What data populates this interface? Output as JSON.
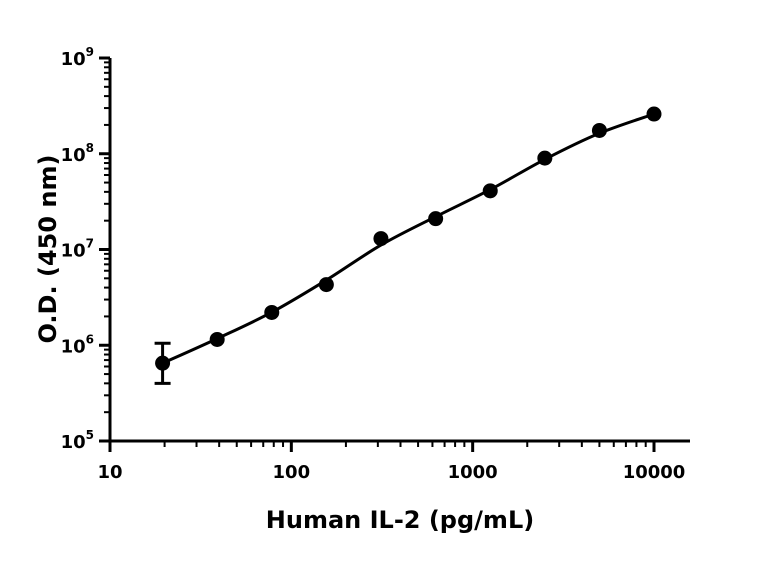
{
  "chart_data": {
    "type": "scatter",
    "title": "",
    "xlabel": "Human IL-2 (pg/mL)",
    "ylabel": "O.D. (450 nm)",
    "xscale": "log",
    "yscale": "log",
    "xlim": [
      10,
      10000
    ],
    "ylim": [
      100000,
      1000000000
    ],
    "grid": false,
    "legend": "none",
    "x_ticks": [
      {
        "value": 10,
        "label": "10"
      },
      {
        "value": 100,
        "label": "100"
      },
      {
        "value": 1000,
        "label": "1000"
      },
      {
        "value": 10000,
        "label": "10000"
      }
    ],
    "y_ticks": [
      {
        "value": 100000,
        "base": "10",
        "exp": "5"
      },
      {
        "value": 1000000,
        "base": "10",
        "exp": "6"
      },
      {
        "value": 10000000,
        "base": "10",
        "exp": "7"
      },
      {
        "value": 100000000,
        "base": "10",
        "exp": "8"
      },
      {
        "value": 1000000000,
        "base": "10",
        "exp": "9"
      }
    ],
    "series": [
      {
        "x": [
          19.5,
          39,
          78,
          156,
          312,
          625,
          1250,
          2500,
          5000,
          10000
        ],
        "y": [
          650000,
          1150000,
          2200000,
          4300000,
          13000000,
          21000000,
          41000000,
          90000000,
          175000000,
          260000000
        ],
        "err_low": [
          400000,
          null,
          null,
          null,
          null,
          null,
          null,
          null,
          null,
          null
        ],
        "err_high": [
          1050000,
          null,
          null,
          null,
          null,
          null,
          null,
          null,
          null,
          null
        ],
        "color": "#000000",
        "fit": "4PL"
      }
    ]
  }
}
